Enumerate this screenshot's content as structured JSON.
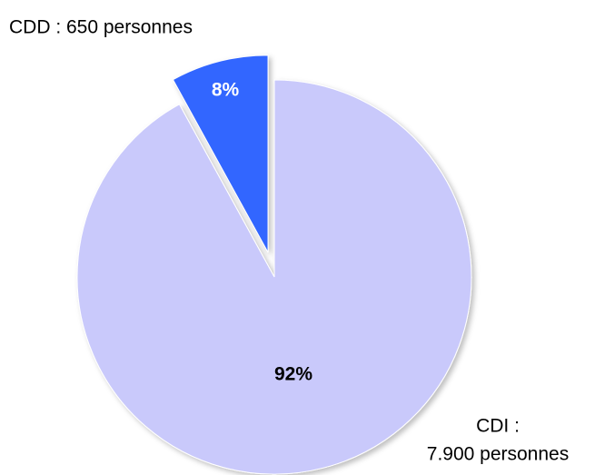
{
  "chart_data": {
    "type": "pie",
    "categories": [
      [
        "CDI :",
        "7.900 personnes"
      ],
      [
        "CDD : 650 personnes"
      ]
    ],
    "values": [
      92,
      8
    ],
    "value_labels": [
      "92%",
      "8%"
    ],
    "colors": [
      "#c9c9fb",
      "#3366ff"
    ],
    "exploded": [
      false,
      true
    ]
  }
}
